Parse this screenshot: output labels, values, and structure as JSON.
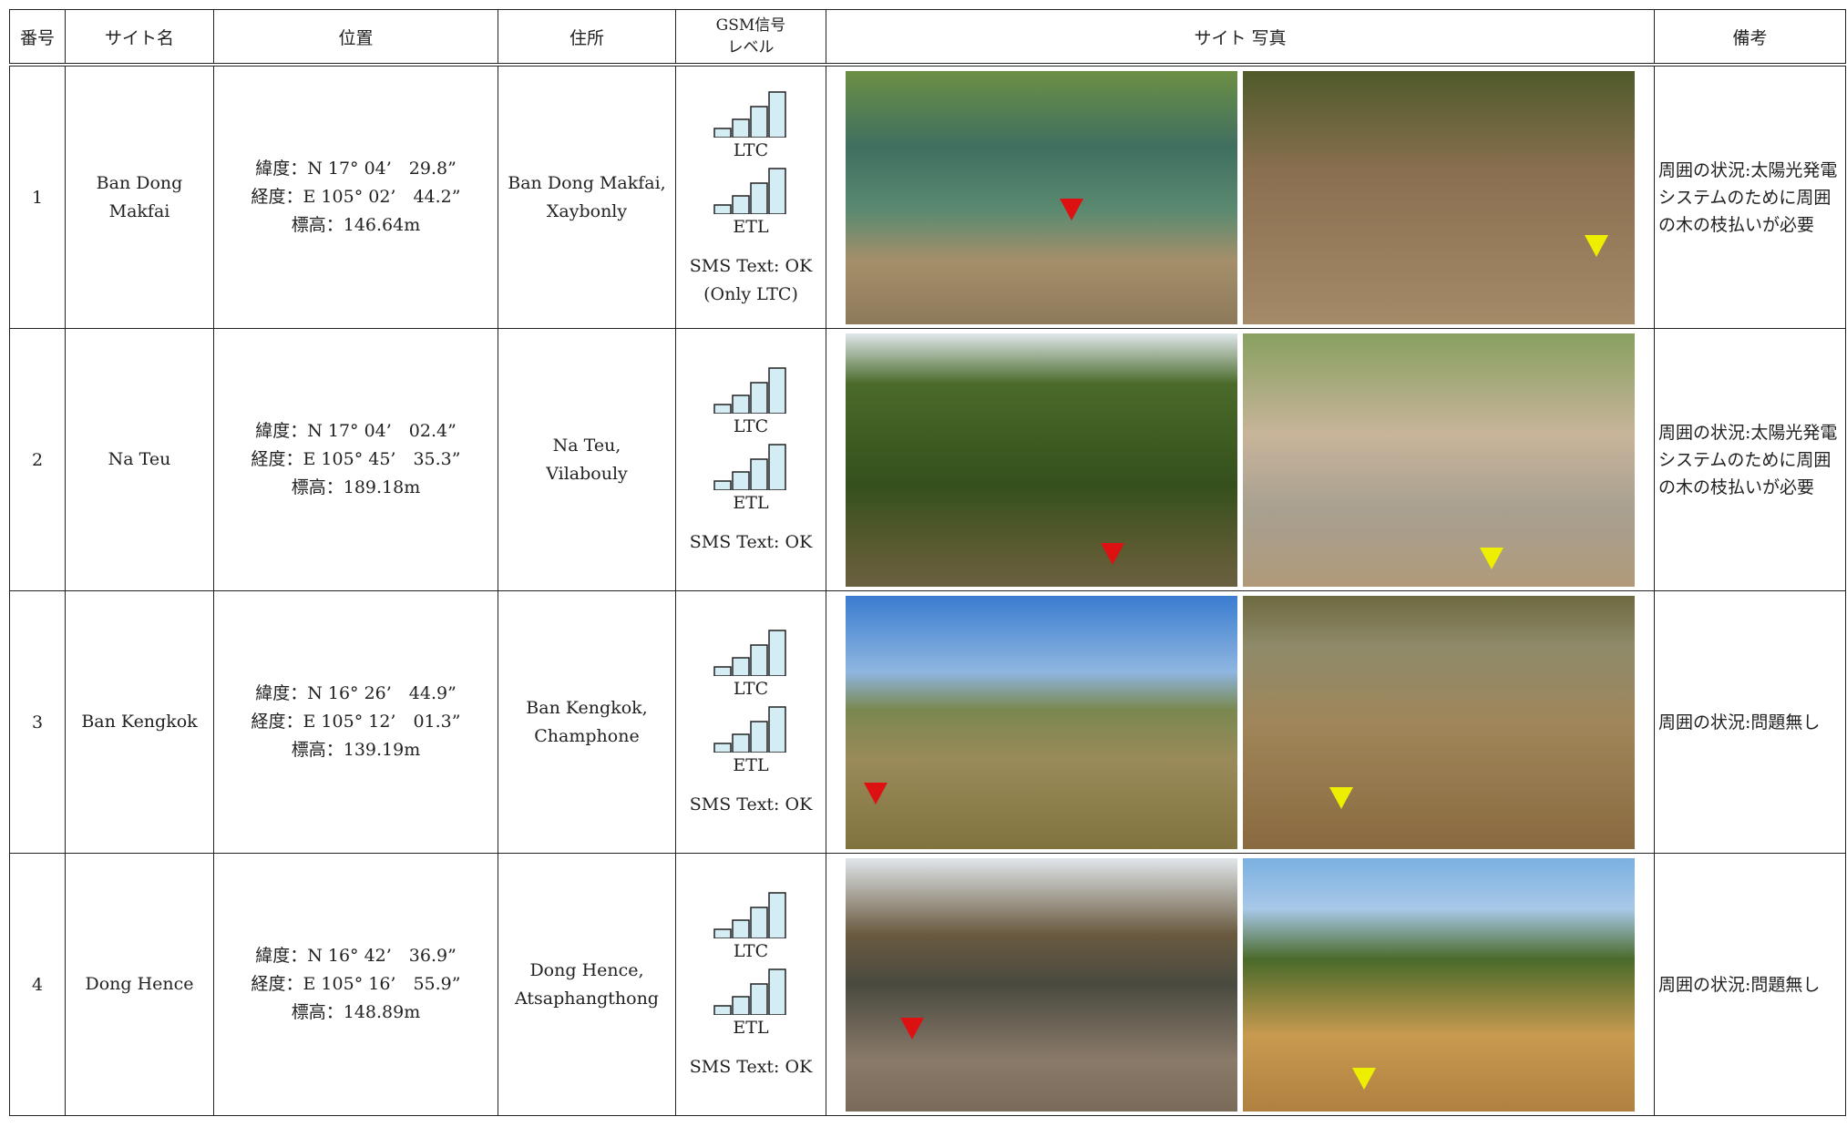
{
  "header": {
    "no": "番号",
    "site_name": "サイト名",
    "location": "位置",
    "address": "住所",
    "gsm": [
      "GSM信号",
      "レベル"
    ],
    "photos": "サイト 写真",
    "remarks": "備考"
  },
  "rows": [
    {
      "no": "1",
      "site_name": [
        "Ban Dong",
        "Makfai"
      ],
      "location": [
        "緯度：N 17° 04’　29.8”",
        "経度：E 105° 02’　44.2”",
        "標高：146.64m"
      ],
      "address": [
        "Ban Dong Makfai,",
        "Xaybonly"
      ],
      "signal": [
        "LTC",
        "ETL"
      ],
      "sms": [
        "SMS Text: OK",
        "(Only LTC)"
      ],
      "remarks": "周囲の状況:太陽光発電システムのために周囲の木の枝払いが必要"
    },
    {
      "no": "2",
      "site_name": [
        "Na Teu"
      ],
      "location": [
        "緯度：N 17° 04’　02.4”",
        "経度：E 105° 45’　35.3”",
        "標高：189.18m"
      ],
      "address": [
        "Na Teu,",
        "Vilabouly"
      ],
      "signal": [
        "LTC",
        "ETL"
      ],
      "sms": [
        "SMS Text: OK"
      ],
      "remarks": "周囲の状況:太陽光発電システムのために周囲の木の枝払いが必要"
    },
    {
      "no": "3",
      "site_name": [
        "Ban Kengkok"
      ],
      "location": [
        "緯度：N 16° 26’　44.9”",
        "経度：E 105° 12’　01.3”",
        "標高：139.19m"
      ],
      "address": [
        "Ban Kengkok,",
        "Champhone"
      ],
      "signal": [
        "LTC",
        "ETL"
      ],
      "sms": [
        "SMS Text: OK"
      ],
      "remarks": "周囲の状況:問題無し"
    },
    {
      "no": "4",
      "site_name": [
        "Dong Hence"
      ],
      "location": [
        "緯度：N 16° 42’　36.9”",
        "経度：E 105° 16’　55.9”",
        "標高：148.89m"
      ],
      "address": [
        "Dong Hence,",
        "Atsaphangthong"
      ],
      "signal": [
        "LTC",
        "ETL"
      ],
      "sms": [
        "SMS Text: OK"
      ],
      "remarks": "周囲の状況:問題無し"
    }
  ]
}
